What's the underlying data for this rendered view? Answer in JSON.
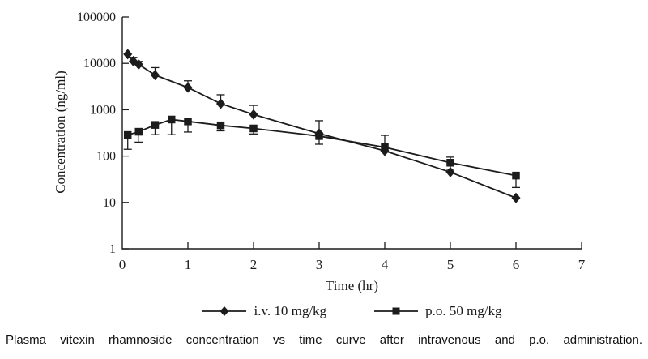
{
  "figure": {
    "caption": "Plasma vitexin rhamnoside concentration vs time curve after intravenous and p.o. administration."
  },
  "chart_data": {
    "type": "line",
    "title": "",
    "xlabel": "Time (hr)",
    "ylabel": "Concentration (ng/ml)",
    "x_ticks": [
      0,
      1,
      2,
      3,
      4,
      5,
      6,
      7
    ],
    "xlim": [
      0,
      7
    ],
    "y_scale": "log",
    "y_ticks": [
      1,
      10,
      100,
      1000,
      10000,
      100000
    ],
    "ylim": [
      1,
      100000
    ],
    "grid": false,
    "legend_position": "bottom",
    "line_color": "#1c1c1c",
    "series": [
      {
        "name": "i.v. 10 mg/kg",
        "marker": "diamond",
        "x": [
          0.083,
          0.167,
          0.25,
          0.5,
          1,
          1.5,
          2,
          3,
          4,
          5,
          6
        ],
        "y": [
          15800,
          11200,
          9500,
          5600,
          3000,
          1350,
          790,
          305,
          130,
          45,
          12.5
        ],
        "err_hi": [
          null,
          13500,
          11000,
          8100,
          4200,
          2100,
          1240,
          580,
          null,
          null,
          null
        ],
        "err_lo": [
          null,
          null,
          null,
          null,
          null,
          null,
          null,
          180,
          null,
          null,
          null
        ]
      },
      {
        "name": "p.o. 50 mg/kg",
        "marker": "square",
        "x": [
          0.083,
          0.25,
          0.5,
          0.75,
          1,
          1.5,
          2,
          3,
          4,
          5,
          6
        ],
        "y": [
          285,
          335,
          470,
          615,
          560,
          460,
          395,
          270,
          155,
          72,
          38
        ],
        "err_hi": [
          null,
          null,
          null,
          null,
          null,
          null,
          null,
          null,
          280,
          95,
          null
        ],
        "err_lo": [
          140,
          200,
          290,
          290,
          330,
          350,
          300,
          null,
          null,
          52,
          21
        ]
      }
    ]
  }
}
